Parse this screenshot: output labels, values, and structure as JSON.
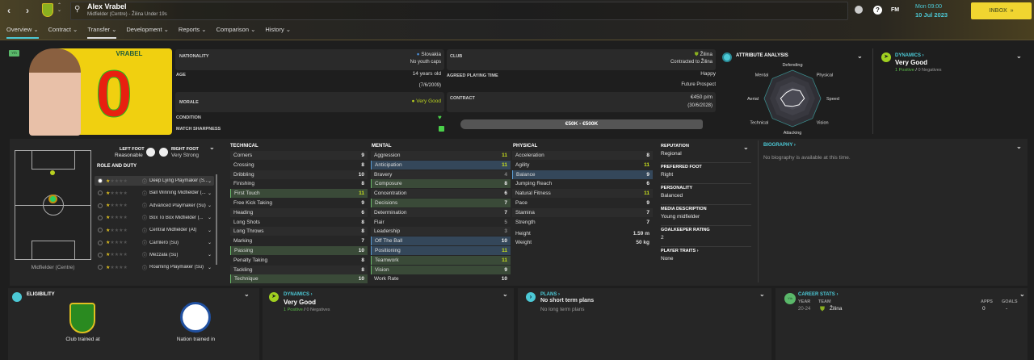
{
  "header": {
    "player_name": "Alex Vrabel",
    "subtitle": "Midfielder (Centre) - Žilina Under 19s",
    "time": "Mon 09:00",
    "date": "10 Jul 2023",
    "fm_label": "FM",
    "inbox_label": "INBOX"
  },
  "tabs": [
    {
      "label": "Overview ⌄"
    },
    {
      "label": "Contract ⌄"
    },
    {
      "label": "Transfer ⌄"
    },
    {
      "label": "Development ⌄"
    },
    {
      "label": "Reports ⌄"
    },
    {
      "label": "Comparison ⌄"
    },
    {
      "label": "History ⌄"
    }
  ],
  "profile": {
    "badge": "Yth",
    "shirt_name": "VRABEL",
    "shirt_number": "0",
    "nationality_label": "NATIONALITY",
    "nationality": "Slovakia",
    "youth_caps": "No youth caps",
    "club_label": "CLUB",
    "club": "Žilina",
    "contracted": "Contracted to Žilina",
    "age_label": "AGE",
    "age": "14 years old",
    "dob": "(7/6/2009)",
    "apt_label": "AGREED PLAYING TIME",
    "apt": "Happy",
    "apt_sub": "Future Prospect",
    "morale_label": "MORALE",
    "morale": "Very Good",
    "contract_label": "CONTRACT",
    "wage": "€450 p/m",
    "contract_end": "(30/6/2028)",
    "condition_label": "CONDITION",
    "sharpness_label": "MATCH SHARPNESS",
    "value_range": "€50K - €500K"
  },
  "attribute_analysis": {
    "title": "ATTRIBUTE ANALYSIS",
    "axes": [
      "Defending",
      "Physical",
      "Speed",
      "Vision",
      "Attacking",
      "Technical",
      "Aerial",
      "Mental"
    ],
    "levels": [
      0.32,
      0.38,
      0.42,
      0.32,
      0.28,
      0.36,
      0.42,
      0.3
    ]
  },
  "dynamics": {
    "title": "DYNAMICS ›",
    "rating": "Very Good",
    "positive": "1 Positive",
    "negatives": "0 Negatives",
    "sep": "/"
  },
  "feet": {
    "left_label": "LEFT FOOT",
    "left": "Reasonable",
    "right_label": "RIGHT FOOT",
    "right": "Very Strong"
  },
  "position": "Midfielder (Centre)",
  "roles_title": "ROLE AND DUTY",
  "roles": [
    "Deep Lying Playmaker (S...",
    "Ball Winning Midfielder (...",
    "Advanced Playmaker (Su)",
    "Box To Box Midfielder (...",
    "Central Midfielder (At)",
    "Carrilero (Su)",
    "Mezzala (Su)",
    "Roaming Playmaker (Su)"
  ],
  "attributes": {
    "technical": {
      "title": "TECHNICAL",
      "items": [
        [
          "Corners",
          9,
          ""
        ],
        [
          "Crossing",
          8,
          ""
        ],
        [
          "Dribbling",
          10,
          ""
        ],
        [
          "Finishing",
          8,
          ""
        ],
        [
          "First Touch",
          11,
          "g"
        ],
        [
          "Free Kick Taking",
          9,
          ""
        ],
        [
          "Heading",
          6,
          ""
        ],
        [
          "Long Shots",
          8,
          ""
        ],
        [
          "Long Throws",
          8,
          ""
        ],
        [
          "Marking",
          7,
          ""
        ],
        [
          "Passing",
          10,
          "g"
        ],
        [
          "Penalty Taking",
          8,
          ""
        ],
        [
          "Tackling",
          8,
          ""
        ],
        [
          "Technique",
          10,
          "g"
        ]
      ]
    },
    "mental": {
      "title": "MENTAL",
      "items": [
        [
          "Aggression",
          11,
          ""
        ],
        [
          "Anticipation",
          11,
          "b"
        ],
        [
          "Bravery",
          4,
          ""
        ],
        [
          "Composure",
          8,
          "g"
        ],
        [
          "Concentration",
          6,
          ""
        ],
        [
          "Decisions",
          7,
          "g"
        ],
        [
          "Determination",
          7,
          ""
        ],
        [
          "Flair",
          5,
          ""
        ],
        [
          "Leadership",
          3,
          ""
        ],
        [
          "Off The Ball",
          10,
          "b"
        ],
        [
          "Positioning",
          11,
          "b"
        ],
        [
          "Teamwork",
          11,
          "g"
        ],
        [
          "Vision",
          9,
          "g"
        ],
        [
          "Work Rate",
          10,
          ""
        ]
      ]
    },
    "physical": {
      "title": "PHYSICAL",
      "items": [
        [
          "Acceleration",
          8,
          ""
        ],
        [
          "Agility",
          11,
          ""
        ],
        [
          "Balance",
          9,
          "b"
        ],
        [
          "Jumping Reach",
          6,
          ""
        ],
        [
          "Natural Fitness",
          11,
          ""
        ],
        [
          "Pace",
          9,
          ""
        ],
        [
          "Stamina",
          7,
          ""
        ],
        [
          "Strength",
          7,
          ""
        ]
      ]
    },
    "height_label": "Height",
    "height": "1.59 m",
    "weight_label": "Weight",
    "weight": "50 kg"
  },
  "info": [
    {
      "label": "REPUTATION",
      "value": "Regional"
    },
    {
      "label": "PREFERRED FOOT",
      "value": "Right"
    },
    {
      "label": "PERSONALITY",
      "value": "Balanced"
    },
    {
      "label": "MEDIA DESCRIPTION",
      "value": "Young midfielder"
    },
    {
      "label": "GOALKEEPER RATING",
      "value": "2"
    },
    {
      "label": "PLAYER TRAITS ›",
      "value": "None"
    }
  ],
  "biography": {
    "title": "BIOGRAPHY ›",
    "text": "No biography is available at this time."
  },
  "eligibility": {
    "title": "ELIGIBILITY",
    "club_label": "Club trained at",
    "nation_label": "Nation trained in"
  },
  "plans": {
    "title": "PLANS ›",
    "short": "No short term plans",
    "long": "No long term plans"
  },
  "career": {
    "title": "CAREER STATS ›",
    "badge": "Yth",
    "cols": [
      "YEAR",
      "TEAM",
      "APPS",
      "GOALS"
    ],
    "rows": [
      {
        "year": "20-24",
        "team": "Žilina",
        "apps": "0",
        "goals": "-"
      }
    ]
  },
  "colors": {
    "accent": "#4cc9d6",
    "highlight": "#c8e01e",
    "inbox": "#f0d530",
    "positive": "#5ab84a"
  }
}
